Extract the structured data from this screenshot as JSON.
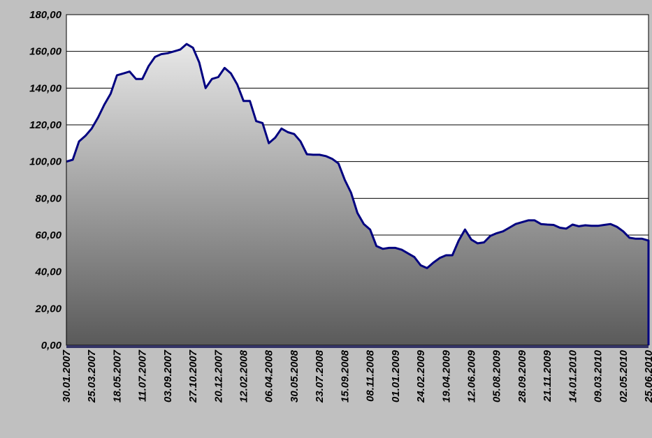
{
  "chart_data": {
    "type": "area",
    "categories": [
      "30.01.2007",
      null,
      null,
      null,
      "25.03.2007",
      null,
      null,
      null,
      "18.05.2007",
      null,
      null,
      null,
      "11.07.2007",
      null,
      null,
      null,
      "03.09.2007",
      null,
      null,
      null,
      "27.10.2007",
      null,
      null,
      null,
      "20.12.2007",
      null,
      null,
      null,
      "12.02.2008",
      null,
      null,
      null,
      "06.04.2008",
      null,
      null,
      null,
      "30.05.2008",
      null,
      null,
      null,
      "23.07.2008",
      null,
      null,
      null,
      "15.09.2008",
      null,
      null,
      null,
      "08.11.2008",
      null,
      null,
      null,
      "01.01.2009",
      null,
      null,
      null,
      "24.02.2009",
      null,
      null,
      null,
      "19.04.2009",
      null,
      null,
      null,
      "12.06.2009",
      null,
      null,
      null,
      "05.08.2009",
      null,
      null,
      null,
      "28.09.2009",
      null,
      null,
      null,
      "21.11.2009",
      null,
      null,
      null,
      "14.01.2010",
      null,
      null,
      null,
      "09.03.2010",
      null,
      null,
      null,
      "02.05.2010",
      null,
      null,
      null,
      "25.06.2010"
    ],
    "series": [
      {
        "color": "#000080",
        "fill_top": "#e8e8e8",
        "fill_bottom": "#5a5a5a",
        "values": [
          100,
          101,
          111,
          114,
          118,
          124,
          131,
          137,
          147,
          148,
          149,
          145,
          145,
          152,
          157,
          158.5,
          159,
          160,
          161,
          164,
          162,
          154,
          140,
          145,
          146,
          151,
          148,
          142,
          133,
          133,
          122,
          121,
          110,
          113,
          118,
          116,
          115,
          111,
          104,
          103.7,
          103.7,
          103,
          101.5,
          99,
          90,
          83,
          72,
          66,
          63,
          54,
          52.5,
          53,
          53,
          52,
          50,
          48,
          43.5,
          42,
          45,
          47.5,
          49,
          49,
          57,
          63,
          57.5,
          55.5,
          56,
          59.5,
          61,
          62,
          64,
          66,
          67,
          68,
          68,
          66,
          65.7,
          65.5,
          64,
          63.5,
          65.7,
          64.8,
          65.3,
          65,
          65,
          65.5,
          66,
          64.5,
          62,
          58.5,
          58,
          58,
          57
        ]
      }
    ],
    "ylim": [
      0,
      180
    ],
    "yticks": [
      {
        "value": 0,
        "label": "0,00"
      },
      {
        "value": 20,
        "label": "20,00"
      },
      {
        "value": 40,
        "label": "40,00"
      },
      {
        "value": 60,
        "label": "60,00"
      },
      {
        "value": 80,
        "label": "80,00"
      },
      {
        "value": 100,
        "label": "100,00"
      },
      {
        "value": 120,
        "label": "120,00"
      },
      {
        "value": 140,
        "label": "140,00"
      },
      {
        "value": 160,
        "label": "160,00"
      },
      {
        "value": 180,
        "label": "180,00"
      }
    ],
    "grid": true
  }
}
